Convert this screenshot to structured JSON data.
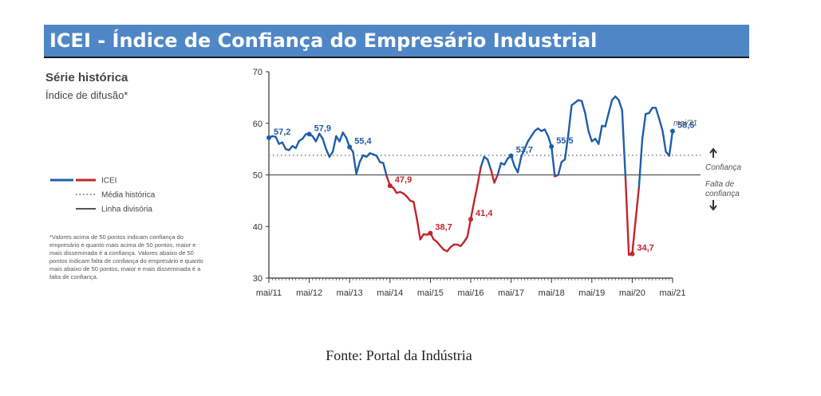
{
  "banner": {
    "title": "ICEI - Índice de Confiança do Empresário Industrial"
  },
  "chart_data": {
    "type": "line",
    "title": "Série histórica",
    "subtitle": "Índice de difusão*",
    "x_ticks": [
      "mai/11",
      "mai/12",
      "mai/13",
      "mai/14",
      "mai/15",
      "mai/16",
      "mai/17",
      "mai/18",
      "mai/19",
      "mai/20",
      "mai/21"
    ],
    "y_ticks": [
      "30",
      "40",
      "50",
      "60",
      "70"
    ],
    "ylim": [
      30,
      70
    ],
    "xlim": [
      "2011-05",
      "2021-05"
    ],
    "historical_mean": 53.8,
    "divider_line": 50,
    "legend": {
      "icei": "ICEI",
      "mean": "Média histórica",
      "divider": "Linha divisória"
    },
    "colors": {
      "above_50": "#1f5fa8",
      "below_50": "#c0262c",
      "mean_line": "#888888",
      "divider_line": "#555555"
    },
    "series": [
      {
        "points": [
          [
            "2011-05",
            57.2
          ],
          [
            "2011-06",
            57.5
          ],
          [
            "2011-07",
            57.4
          ],
          [
            "2011-08",
            56.0
          ],
          [
            "2011-09",
            56.3
          ],
          [
            "2011-10",
            55.0
          ],
          [
            "2011-11",
            54.8
          ],
          [
            "2011-12",
            55.6
          ],
          [
            "2012-01",
            55.2
          ],
          [
            "2012-02",
            56.6
          ],
          [
            "2012-03",
            57.0
          ],
          [
            "2012-04",
            57.9
          ],
          [
            "2012-05",
            57.9
          ],
          [
            "2012-06",
            57.5
          ],
          [
            "2012-07",
            56.5
          ],
          [
            "2012-08",
            58.0
          ],
          [
            "2012-09",
            57.0
          ],
          [
            "2012-10",
            55.0
          ],
          [
            "2012-11",
            53.5
          ],
          [
            "2012-12",
            54.5
          ],
          [
            "2013-01",
            57.5
          ],
          [
            "2013-02",
            56.5
          ],
          [
            "2013-03",
            58.2
          ],
          [
            "2013-04",
            57.2
          ],
          [
            "2013-05",
            55.4
          ],
          [
            "2013-06",
            54.5
          ],
          [
            "2013-07",
            50.2
          ],
          [
            "2013-08",
            52.5
          ],
          [
            "2013-09",
            53.8
          ],
          [
            "2013-10",
            53.5
          ],
          [
            "2013-11",
            54.2
          ],
          [
            "2013-12",
            54.0
          ],
          [
            "2014-01",
            53.7
          ],
          [
            "2014-02",
            52.5
          ],
          [
            "2014-03",
            52.3
          ],
          [
            "2014-04",
            49.8
          ],
          [
            "2014-05",
            47.9
          ],
          [
            "2014-06",
            47.5
          ],
          [
            "2014-07",
            46.5
          ],
          [
            "2014-08",
            46.7
          ],
          [
            "2014-09",
            46.4
          ],
          [
            "2014-10",
            45.8
          ],
          [
            "2014-11",
            45.0
          ],
          [
            "2014-12",
            44.8
          ],
          [
            "2015-01",
            41.5
          ],
          [
            "2015-02",
            37.5
          ],
          [
            "2015-03",
            38.5
          ],
          [
            "2015-04",
            38.4
          ],
          [
            "2015-05",
            38.7
          ],
          [
            "2015-06",
            37.5
          ],
          [
            "2015-07",
            37.0
          ],
          [
            "2015-08",
            36.2
          ],
          [
            "2015-09",
            35.5
          ],
          [
            "2015-10",
            35.2
          ],
          [
            "2015-11",
            36.0
          ],
          [
            "2015-12",
            36.5
          ],
          [
            "2016-01",
            36.5
          ],
          [
            "2016-02",
            36.2
          ],
          [
            "2016-03",
            37.0
          ],
          [
            "2016-04",
            38.0
          ],
          [
            "2016-05",
            41.4
          ],
          [
            "2016-06",
            44.8
          ],
          [
            "2016-07",
            48.0
          ],
          [
            "2016-08",
            51.5
          ],
          [
            "2016-09",
            53.5
          ],
          [
            "2016-10",
            53.0
          ],
          [
            "2016-11",
            51.0
          ],
          [
            "2016-12",
            48.5
          ],
          [
            "2017-01",
            50.0
          ],
          [
            "2017-02",
            52.3
          ],
          [
            "2017-03",
            52.0
          ],
          [
            "2017-04",
            53.2
          ],
          [
            "2017-05",
            53.7
          ],
          [
            "2017-06",
            51.7
          ],
          [
            "2017-07",
            50.5
          ],
          [
            "2017-08",
            53.5
          ],
          [
            "2017-09",
            55.0
          ],
          [
            "2017-10",
            56.5
          ],
          [
            "2017-11",
            57.5
          ],
          [
            "2017-12",
            58.5
          ],
          [
            "2018-01",
            59.0
          ],
          [
            "2018-02",
            58.5
          ],
          [
            "2018-03",
            58.8
          ],
          [
            "2018-04",
            57.5
          ],
          [
            "2018-05",
            55.5
          ],
          [
            "2018-06",
            49.7
          ],
          [
            "2018-07",
            50.0
          ],
          [
            "2018-08",
            52.5
          ],
          [
            "2018-09",
            53.0
          ],
          [
            "2018-10",
            57.8
          ],
          [
            "2018-11",
            63.5
          ],
          [
            "2018-12",
            64.0
          ],
          [
            "2019-01",
            64.5
          ],
          [
            "2019-02",
            64.3
          ],
          [
            "2019-03",
            62.0
          ],
          [
            "2019-04",
            58.5
          ],
          [
            "2019-05",
            56.5
          ],
          [
            "2019-06",
            57.0
          ],
          [
            "2019-07",
            56.0
          ],
          [
            "2019-08",
            59.5
          ],
          [
            "2019-09",
            59.4
          ],
          [
            "2019-10",
            62.0
          ],
          [
            "2019-11",
            64.5
          ],
          [
            "2019-12",
            65.2
          ],
          [
            "2020-01",
            64.5
          ],
          [
            "2020-02",
            62.5
          ],
          [
            "2020-03",
            49.5
          ],
          [
            "2020-04",
            34.5
          ],
          [
            "2020-05",
            34.7
          ],
          [
            "2020-06",
            41.2
          ],
          [
            "2020-07",
            47.6
          ],
          [
            "2020-08",
            57.0
          ],
          [
            "2020-09",
            61.8
          ],
          [
            "2020-10",
            62.0
          ],
          [
            "2020-11",
            63.0
          ],
          [
            "2020-12",
            63.0
          ],
          [
            "2021-01",
            60.9
          ],
          [
            "2021-02",
            58.6
          ],
          [
            "2021-03",
            54.5
          ],
          [
            "2021-04",
            53.7
          ],
          [
            "2021-05",
            58.5
          ]
        ]
      }
    ],
    "annotations": [
      {
        "label": "57,2",
        "x": "2011-05",
        "y": 57.2,
        "color": "#1f5fa8"
      },
      {
        "label": "57,9",
        "x": "2012-05",
        "y": 57.9,
        "color": "#1f5fa8"
      },
      {
        "label": "55,4",
        "x": "2013-05",
        "y": 55.4,
        "color": "#1f5fa8"
      },
      {
        "label": "47,9",
        "x": "2014-05",
        "y": 47.9,
        "color": "#c0262c"
      },
      {
        "label": "38,7",
        "x": "2015-05",
        "y": 38.7,
        "color": "#c0262c"
      },
      {
        "label": "41,4",
        "x": "2016-05",
        "y": 41.4,
        "color": "#c0262c"
      },
      {
        "label": "53,7",
        "x": "2017-05",
        "y": 53.7,
        "color": "#1f5fa8"
      },
      {
        "label": "55,5",
        "x": "2018-05",
        "y": 55.5,
        "color": "#1f5fa8"
      },
      {
        "label": "34,7",
        "x": "2020-05",
        "y": 34.7,
        "color": "#c0262c"
      },
      {
        "label": "58,5",
        "x": "2021-05",
        "y": 58.5,
        "color": "#1f5fa8"
      }
    ],
    "latest_label": "mai/21",
    "side_labels": {
      "confidence": "Confiança",
      "no_confidence_line1": "Falta de",
      "no_confidence_line2": "confiança"
    },
    "footnote": [
      "*Valores acima de 50 pontos indicam confiança do",
      "empresário e quanto mais acima de 50 pontos, maior e",
      "mais disseminada é a confiança. Valores abaixo de 50",
      "pontos indicam falta de confiança do empresário e quanto",
      "mais abaixo de 50 pontos, maior e mais disseminada é a",
      "falta de confiança."
    ]
  },
  "source": "Fonte: Portal da Indústria"
}
